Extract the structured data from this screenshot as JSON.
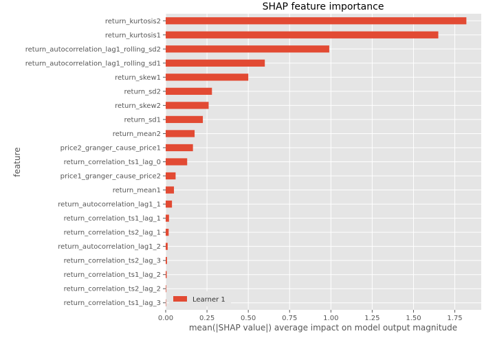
{
  "chart_data": {
    "type": "bar",
    "orientation": "horizontal",
    "title": "SHAP feature importance",
    "xlabel": "mean(|SHAP value|) average impact on model output magnitude",
    "ylabel": "feature",
    "xlim": [
      0,
      1.91
    ],
    "xticks": [
      "0.00",
      "0.25",
      "0.50",
      "0.75",
      "1.00",
      "1.25",
      "1.50",
      "1.75"
    ],
    "grid": true,
    "legend_position": "bottom-left",
    "categories": [
      "return_kurtosis2",
      "return_kurtosis1",
      "return_autocorrelation_lag1_rolling_sd2",
      "return_autocorrelation_lag1_rolling_sd1",
      "return_skew1",
      "return_sd2",
      "return_skew2",
      "return_sd1",
      "return_mean2",
      "price2_granger_cause_price1",
      "return_correlation_ts1_lag_0",
      "price1_granger_cause_price2",
      "return_mean1",
      "return_autocorrelation_lag1_1",
      "return_correlation_ts1_lag_1",
      "return_correlation_ts2_lag_1",
      "return_autocorrelation_lag1_2",
      "return_correlation_ts2_lag_3",
      "return_correlation_ts1_lag_2",
      "return_correlation_ts2_lag_2",
      "return_correlation_ts1_lag_3"
    ],
    "series": [
      {
        "name": "Learner 1",
        "color": "#e24a33",
        "values": [
          1.82,
          1.65,
          0.99,
          0.6,
          0.5,
          0.28,
          0.26,
          0.225,
          0.175,
          0.165,
          0.13,
          0.06,
          0.05,
          0.038,
          0.02,
          0.018,
          0.012,
          0.008,
          0.006,
          0.003,
          0.002
        ]
      }
    ]
  }
}
